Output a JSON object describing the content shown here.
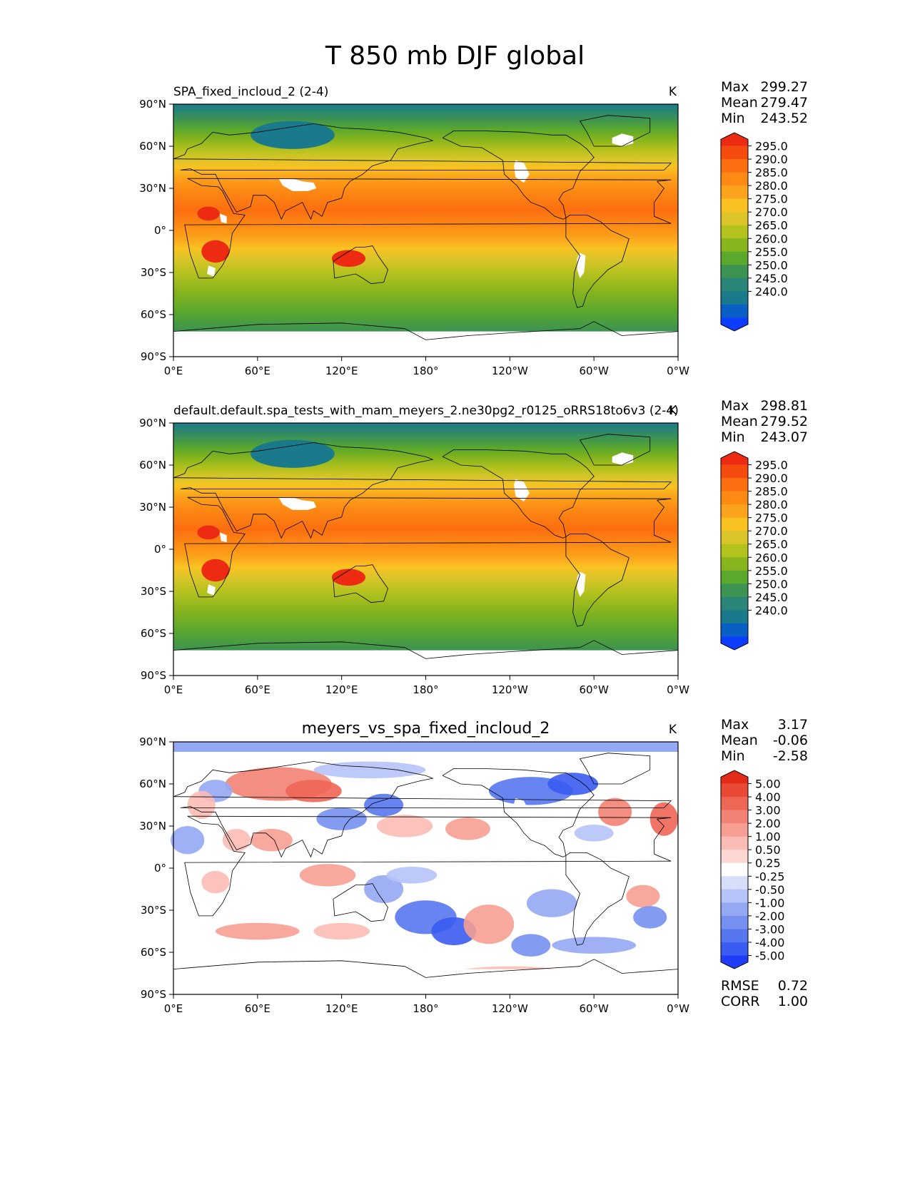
{
  "figure": {
    "title": "T 850 mb DJF global"
  },
  "colors": {
    "abs_levels": [
      "#0b3cff",
      "#0a5fc4",
      "#1a7a8c",
      "#2a8577",
      "#3d9352",
      "#5aa82c",
      "#88b41d",
      "#b4c21e",
      "#dcc52a",
      "#f9c221",
      "#fba31c",
      "#fc8a14",
      "#fc6e10",
      "#f64b0f",
      "#ec2b12"
    ],
    "diff_levels": [
      "#1f3cf7",
      "#3a5cf0",
      "#5677ee",
      "#7590f0",
      "#95a8f3",
      "#b6c3f8",
      "#d6def9",
      "#ffffff",
      "#fdd8d3",
      "#fbbcb5",
      "#f79e92",
      "#f28273",
      "#ee6655",
      "#ea4a35",
      "#e32c17"
    ],
    "land_mask": "#ffffff"
  },
  "panels": [
    {
      "id": "test",
      "title": "SPA_fixed_incloud_2 (2-4)",
      "units": "K",
      "stats": {
        "max_label": "Max",
        "max": "299.27",
        "mean_label": "Mean",
        "mean": "279.47",
        "min_label": "Min",
        "min": "243.52"
      },
      "colorbar_ticks": [
        "295.0",
        "290.0",
        "285.0",
        "280.0",
        "275.0",
        "270.0",
        "265.0",
        "260.0",
        "255.0",
        "250.0",
        "245.0",
        "240.0"
      ]
    },
    {
      "id": "reference",
      "title": "default.default.spa_tests_with_mam_meyers_2.ne30pg2_r0125_oRRS18to6v3 (2-4)",
      "units": "K",
      "stats": {
        "max_label": "Max",
        "max": "298.81",
        "mean_label": "Mean",
        "mean": "279.52",
        "min_label": "Min",
        "min": "243.07"
      },
      "colorbar_ticks": [
        "295.0",
        "290.0",
        "285.0",
        "280.0",
        "275.0",
        "270.0",
        "265.0",
        "260.0",
        "255.0",
        "250.0",
        "245.0",
        "240.0"
      ]
    },
    {
      "id": "diff",
      "title": "meyers_vs_spa_fixed_incloud_2",
      "units": "K",
      "stats": {
        "max_label": "Max",
        "max": "3.17",
        "mean_label": "Mean",
        "mean": "-0.06",
        "min_label": "Min",
        "min": "-2.58"
      },
      "colorbar_ticks": [
        "5.00",
        "4.00",
        "3.00",
        "2.00",
        "1.00",
        "0.50",
        "0.25",
        "-0.25",
        "-0.50",
        "-1.00",
        "-2.00",
        "-3.00",
        "-4.00",
        "-5.00"
      ],
      "metrics": {
        "rmse_label": "RMSE",
        "rmse": "0.72",
        "corr_label": "CORR",
        "corr": "1.00"
      }
    }
  ],
  "chart_data": {
    "type": "heatmap",
    "title": "T 850 mb DJF global",
    "variable": "T 850 mb",
    "season": "DJF",
    "units": "K",
    "x_ticks": [
      "0°E",
      "60°E",
      "120°E",
      "180°",
      "120°W",
      "60°W",
      "0°W"
    ],
    "y_ticks": [
      "90°N",
      "60°N",
      "30°N",
      "0°",
      "30°S",
      "60°S",
      "90°S"
    ],
    "xlim": [
      0,
      360
    ],
    "ylim": [
      -90,
      90
    ],
    "abs_contour_levels": [
      240,
      245,
      250,
      255,
      260,
      265,
      270,
      275,
      280,
      285,
      290,
      295
    ],
    "diff_contour_levels": [
      -5,
      -4,
      -3,
      -2,
      -1,
      -0.5,
      -0.25,
      0.25,
      0.5,
      1,
      2,
      3,
      4,
      5
    ],
    "panels": [
      {
        "name": "SPA_fixed_incloud_2 (2-4)",
        "max": 299.27,
        "mean": 279.47,
        "min": 243.52
      },
      {
        "name": "default.default.spa_tests_with_mam_meyers_2.ne30pg2_r0125_oRRS18to6v3 (2-4)",
        "max": 298.81,
        "mean": 279.52,
        "min": 243.07
      },
      {
        "name": "meyers_vs_spa_fixed_incloud_2",
        "max": 3.17,
        "mean": -0.06,
        "min": -2.58,
        "rmse": 0.72,
        "corr": 1.0
      }
    ]
  }
}
